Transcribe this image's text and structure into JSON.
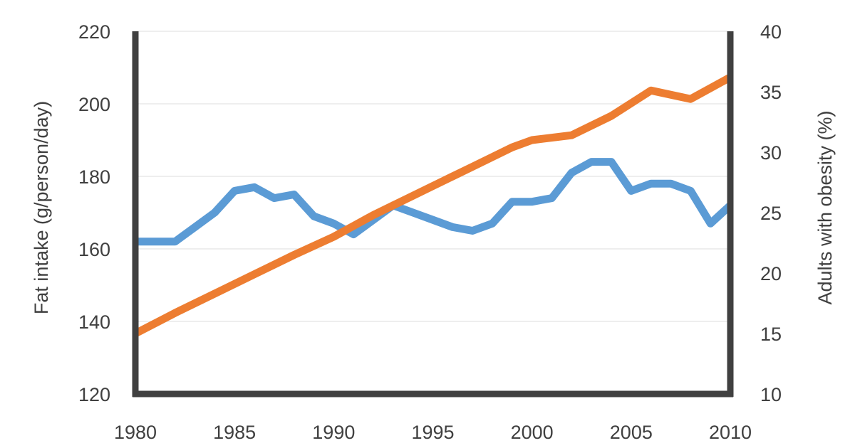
{
  "chart_data": {
    "type": "line",
    "title": "",
    "xlabel": "",
    "ylabel": "Fat intake (g/person/day)",
    "y2label": "Adults with obesity (%)",
    "xlim": [
      1980,
      2010
    ],
    "ylim": [
      120,
      220
    ],
    "y2lim": [
      10,
      40
    ],
    "x_ticks": [
      "1980",
      "1985",
      "1990",
      "1995",
      "2000",
      "2005",
      "2010"
    ],
    "y_ticks": [
      "120",
      "140",
      "160",
      "180",
      "200",
      "220"
    ],
    "y2_ticks": [
      "10",
      "15",
      "20",
      "25",
      "30",
      "35",
      "40"
    ],
    "grid": true,
    "legend": "none",
    "series": [
      {
        "axis": "left",
        "color": "#5B9BD5",
        "x": [
          1980,
          1981,
          1982,
          1983,
          1984,
          1985,
          1986,
          1987,
          1988,
          1989,
          1990,
          1991,
          1992,
          1993,
          1994,
          1995,
          1996,
          1997,
          1998,
          1999,
          2000,
          2001,
          2002,
          2003,
          2004,
          2005,
          2006,
          2007,
          2008,
          2009,
          2010
        ],
        "values": [
          162,
          162,
          162,
          166,
          170,
          176,
          177,
          174,
          175,
          169,
          167,
          164,
          168,
          172,
          170,
          168,
          166,
          165,
          167,
          173,
          173,
          174,
          181,
          184,
          184,
          176,
          178,
          178,
          176,
          167,
          172
        ]
      },
      {
        "axis": "right",
        "color": "#ED7D31",
        "x": [
          1980,
          1982,
          1984,
          1986,
          1988,
          1990,
          1991,
          1992,
          1993,
          1994,
          1995,
          1996,
          1997,
          1998,
          1999,
          2000,
          2002,
          2004,
          2006,
          2008,
          2010
        ],
        "values": [
          15.0,
          16.7,
          18.3,
          19.9,
          21.5,
          23.0,
          23.9,
          24.8,
          25.6,
          26.4,
          27.2,
          28.0,
          28.8,
          29.6,
          30.4,
          31.0,
          31.4,
          33.0,
          35.1,
          34.4,
          36.2
        ]
      }
    ]
  }
}
